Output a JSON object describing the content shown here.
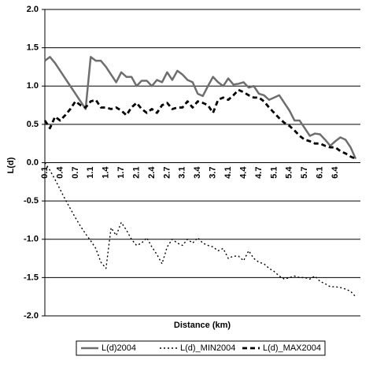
{
  "chart_data": {
    "type": "line",
    "x_label": "Distance (km)",
    "y_label": "L(d)",
    "categories": [
      "0.1",
      null,
      null,
      "0.4",
      null,
      null,
      "0.7",
      null,
      null,
      "1.1",
      null,
      null,
      "1.4",
      null,
      null,
      "1.7",
      null,
      null,
      "2.1",
      null,
      null,
      "2.4",
      null,
      null,
      "2.7",
      null,
      null,
      "3.1",
      null,
      null,
      "3.4",
      null,
      null,
      "3.7",
      null,
      null,
      "4.1",
      null,
      null,
      "4.4",
      null,
      null,
      "4.7",
      null,
      null,
      "5.1",
      null,
      null,
      "5.4",
      null,
      null,
      "5.7",
      null,
      null,
      "6.1",
      null,
      null,
      "6.4",
      null,
      null,
      null,
      null
    ],
    "series": [
      {
        "name": "L(d)2004",
        "color": "#6e6e6e",
        "line_style": "solid",
        "values": [
          1.33,
          1.38,
          1.3,
          1.2,
          1.1,
          1.0,
          0.9,
          0.8,
          0.7,
          1.38,
          1.33,
          1.33,
          1.25,
          1.15,
          1.05,
          1.18,
          1.12,
          1.12,
          1.0,
          1.07,
          1.07,
          1.0,
          1.08,
          1.05,
          1.18,
          1.08,
          1.2,
          1.15,
          1.08,
          1.05,
          0.9,
          0.87,
          1.0,
          1.12,
          1.05,
          1.0,
          1.1,
          1.02,
          1.03,
          1.05,
          0.98,
          1.0,
          0.9,
          0.88,
          0.82,
          0.85,
          0.88,
          0.78,
          0.68,
          0.55,
          0.55,
          0.45,
          0.35,
          0.38,
          0.37,
          0.3,
          0.22,
          0.28,
          0.33,
          0.3,
          0.2,
          0.05
        ]
      },
      {
        "name": "L(d)_MIN2004",
        "color": "#000000",
        "line_style": "dotted",
        "values": [
          0.0,
          -0.1,
          -0.22,
          -0.35,
          -0.48,
          -0.6,
          -0.72,
          -0.83,
          -0.93,
          -1.02,
          -1.12,
          -1.3,
          -1.38,
          -0.85,
          -0.95,
          -0.78,
          -0.88,
          -1.0,
          -1.08,
          -1.05,
          -0.98,
          -1.1,
          -1.2,
          -1.32,
          -1.1,
          -1.0,
          -1.05,
          -1.08,
          -1.0,
          -1.05,
          -0.98,
          -1.05,
          -1.08,
          -1.1,
          -1.15,
          -1.12,
          -1.25,
          -1.22,
          -1.22,
          -1.28,
          -1.15,
          -1.25,
          -1.3,
          -1.32,
          -1.38,
          -1.42,
          -1.48,
          -1.52,
          -1.5,
          -1.48,
          -1.5,
          -1.5,
          -1.52,
          -1.48,
          -1.55,
          -1.58,
          -1.62,
          -1.62,
          -1.63,
          -1.65,
          -1.68,
          -1.75
        ]
      },
      {
        "name": "L(d)_MAX2004",
        "color": "#000000",
        "line_style": "dashed",
        "values": [
          0.55,
          0.45,
          0.6,
          0.55,
          0.62,
          0.7,
          0.8,
          0.75,
          0.72,
          0.8,
          0.82,
          0.72,
          0.72,
          0.7,
          0.72,
          0.68,
          0.62,
          0.72,
          0.78,
          0.7,
          0.65,
          0.7,
          0.65,
          0.75,
          0.78,
          0.7,
          0.72,
          0.72,
          0.8,
          0.72,
          0.8,
          0.78,
          0.75,
          0.65,
          0.82,
          0.85,
          0.82,
          0.88,
          0.95,
          0.92,
          0.88,
          0.85,
          0.85,
          0.8,
          0.72,
          0.65,
          0.58,
          0.52,
          0.48,
          0.42,
          0.35,
          0.3,
          0.28,
          0.25,
          0.25,
          0.22,
          0.2,
          0.2,
          0.15,
          0.12,
          0.08,
          0.05
        ]
      }
    ],
    "ylim": [
      -2,
      2
    ],
    "yticks": [
      {
        "value": 2,
        "label": "2.0"
      },
      1.5,
      {
        "value": 1,
        "label": "1.0"
      },
      0.5,
      {
        "value": 0,
        "label": "0.0"
      },
      -0.5,
      {
        "value": -1,
        "label": "-1.0"
      },
      -1.5,
      {
        "value": -2,
        "label": "-2.0"
      }
    ],
    "grid": true,
    "legend": "bottom"
  }
}
